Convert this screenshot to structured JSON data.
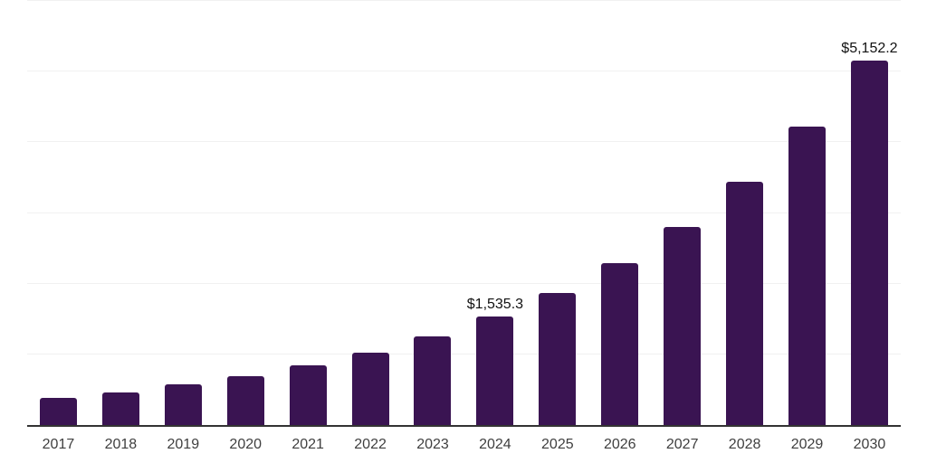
{
  "chart_data": {
    "type": "bar",
    "title": "",
    "xlabel": "",
    "ylabel": "",
    "categories": [
      "2017",
      "2018",
      "2019",
      "2020",
      "2021",
      "2022",
      "2023",
      "2024",
      "2025",
      "2026",
      "2027",
      "2028",
      "2029",
      "2030"
    ],
    "values": [
      381,
      463,
      573,
      697,
      847,
      1030,
      1251,
      1535.3,
      1870,
      2295,
      2807,
      3446,
      4218,
      5152.2
    ],
    "value_labels": {
      "2024": "$1,535.3",
      "2030": "$5,152.2"
    },
    "ylim": [
      0,
      6000
    ],
    "grid_step": 1000,
    "grid": "horizontal-only",
    "legend": "none",
    "y_tick_labels_visible": false,
    "colors": {
      "bar": "#3a1452",
      "gridline": "#f1f1f1",
      "axis_line": "#333333",
      "x_tick_label": "#3f3f3f",
      "value_label": "#121212",
      "background": "#ffffff"
    }
  }
}
